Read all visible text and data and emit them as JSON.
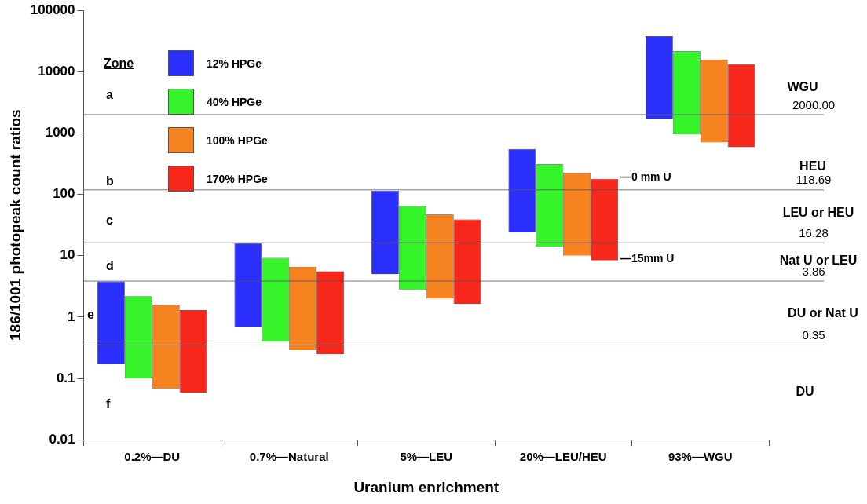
{
  "chart_data": {
    "type": "bar",
    "xlabel": "Uranium enrichment",
    "ylabel": "186/1001 photopeak count ratios",
    "categories": [
      "0.2%—DU",
      "0.7%—Natural",
      "5%—LEU",
      "20%—LEU/HEU",
      "93%—WGU"
    ],
    "log": true,
    "ylim": [
      0.01,
      100000
    ],
    "yticks": [
      0.01,
      0.1,
      1,
      10,
      100,
      1000,
      10000,
      100000
    ],
    "series": [
      {
        "name": "12% HPGe",
        "color": "#2a2ffb",
        "base": [
          0.17,
          0.7,
          5,
          24,
          1700
        ],
        "values": [
          3.63,
          15.3,
          110,
          526,
          36300
        ]
      },
      {
        "name": "40% HPGe",
        "color": "#35f52a",
        "base": [
          0.1,
          0.4,
          2.8,
          14,
          950
        ],
        "values": [
          2.1,
          8.8,
          62,
          296,
          20650
        ]
      },
      {
        "name": "100% HPGe",
        "color": "#f78220",
        "base": [
          0.068,
          0.29,
          2,
          10,
          700
        ],
        "values": [
          1.532,
          6.31,
          45,
          215,
          15100
        ]
      },
      {
        "name": "170% HPGe",
        "color": "#f8271b",
        "base": [
          0.059,
          0.25,
          1.65,
          8.4,
          590
        ],
        "values": [
          1.241,
          5.35,
          37.35,
          171.6,
          12610
        ]
      }
    ],
    "legend": "top left",
    "legend_title": "Zone",
    "ref_lines": [
      {
        "axis": "y",
        "value": 2000,
        "label": "2000.00"
      },
      {
        "axis": "y",
        "value": 118.69,
        "label": "118.69"
      },
      {
        "axis": "y",
        "value": 16.28,
        "label": "16.28"
      },
      {
        "axis": "y",
        "value": 3.86,
        "label": "3.86"
      },
      {
        "axis": "y",
        "value": 0.35,
        "label": "0.35"
      }
    ],
    "annotations": [
      "a",
      "b",
      "c",
      "d",
      "e",
      "f",
      "WGU",
      "HEU",
      "LEU or HEU",
      "Nat U or LEU",
      "DU or Nat U",
      "DU",
      "—0 mm U",
      "—15mm U"
    ]
  }
}
